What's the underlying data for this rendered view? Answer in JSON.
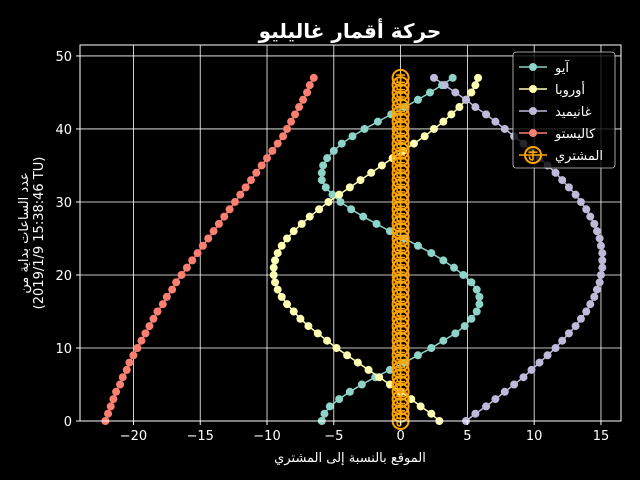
{
  "chart_data": {
    "type": "line",
    "title": "حركة أقمار غاليليو",
    "xlabel": "الموقع  بالنسبة إلى المشتري",
    "ylabel_line1": "عدد الساعات بداية من",
    "ylabel_line2": "(2019/1/9 15:38:46 TU)",
    "xlim": [
      -24,
      16.5
    ],
    "ylim": [
      0,
      51.5
    ],
    "xticks": [
      -20,
      -15,
      -10,
      -5,
      0,
      5,
      10,
      15
    ],
    "yticks": [
      0,
      10,
      20,
      30,
      40,
      50
    ],
    "grid": true,
    "legend_position": "top-right",
    "time_step_hours": 1,
    "series": [
      {
        "name": "آيو",
        "color": "#8dd3c7",
        "t": [
          0,
          1,
          2,
          3,
          4,
          5,
          6,
          7,
          8,
          9,
          10,
          11,
          12,
          13,
          14,
          15,
          16,
          17,
          18,
          19,
          20,
          21,
          22,
          23,
          24,
          25,
          26,
          27,
          28,
          29,
          30,
          31,
          32,
          33,
          34,
          35,
          36,
          37,
          38,
          39,
          40,
          41,
          42,
          43,
          44,
          45,
          46,
          47
        ],
        "x": [
          -5.9,
          -5.7,
          -5.3,
          -4.6,
          -3.8,
          -2.9,
          -1.9,
          -0.8,
          0.3,
          1.3,
          2.3,
          3.2,
          4.1,
          4.8,
          5.3,
          5.7,
          5.9,
          5.9,
          5.7,
          5.3,
          4.7,
          4.0,
          3.2,
          2.3,
          1.3,
          0.3,
          -0.8,
          -1.8,
          -2.8,
          -3.7,
          -4.5,
          -5.1,
          -5.6,
          -5.9,
          -5.9,
          -5.8,
          -5.5,
          -5.0,
          -4.4,
          -3.6,
          -2.7,
          -1.7,
          -0.7,
          0.3,
          1.3,
          2.2,
          3.1,
          3.9
        ]
      },
      {
        "name": "أوروبا",
        "color": "#ffffb3",
        "t": [
          0,
          1,
          2,
          3,
          4,
          5,
          6,
          7,
          8,
          9,
          10,
          11,
          12,
          13,
          14,
          15,
          16,
          17,
          18,
          19,
          20,
          21,
          22,
          23,
          24,
          25,
          26,
          27,
          28,
          29,
          30,
          31,
          32,
          33,
          34,
          35,
          36,
          37,
          38,
          39,
          40,
          41,
          42,
          43,
          44,
          45,
          46,
          47
        ],
        "x": [
          2.9,
          2.3,
          1.5,
          0.8,
          0.0,
          -0.8,
          -1.6,
          -2.4,
          -3.2,
          -4.0,
          -4.8,
          -5.5,
          -6.2,
          -6.9,
          -7.5,
          -8.0,
          -8.5,
          -8.9,
          -9.2,
          -9.4,
          -9.5,
          -9.5,
          -9.4,
          -9.2,
          -8.9,
          -8.5,
          -8.0,
          -7.4,
          -6.8,
          -6.1,
          -5.4,
          -4.6,
          -3.8,
          -3.0,
          -2.2,
          -1.4,
          -0.6,
          0.2,
          1.0,
          1.8,
          2.5,
          3.2,
          3.8,
          4.4,
          4.9,
          5.3,
          5.6,
          5.8
        ]
      },
      {
        "name": "غانيميد",
        "color": "#bebada",
        "t": [
          0,
          1,
          2,
          3,
          4,
          5,
          6,
          7,
          8,
          9,
          10,
          11,
          12,
          13,
          14,
          15,
          16,
          17,
          18,
          19,
          20,
          21,
          22,
          23,
          24,
          25,
          26,
          27,
          28,
          29,
          30,
          31,
          32,
          33,
          34,
          35,
          36,
          37,
          38,
          39,
          40,
          41,
          42,
          43,
          44,
          45,
          46,
          47
        ],
        "x": [
          4.9,
          5.6,
          6.4,
          7.1,
          7.8,
          8.5,
          9.2,
          9.8,
          10.4,
          11.0,
          11.6,
          12.1,
          12.6,
          13.1,
          13.5,
          13.9,
          14.2,
          14.5,
          14.7,
          14.9,
          15.0,
          15.1,
          15.1,
          15.1,
          15.0,
          14.9,
          14.7,
          14.5,
          14.2,
          13.9,
          13.5,
          13.1,
          12.6,
          12.1,
          11.6,
          11.0,
          10.4,
          9.8,
          9.2,
          8.5,
          7.8,
          7.1,
          6.4,
          5.6,
          4.9,
          4.1,
          3.3,
          2.5
        ]
      },
      {
        "name": "كاليستو",
        "color": "#fb8072",
        "t": [
          0,
          1,
          2,
          3,
          4,
          5,
          6,
          7,
          8,
          9,
          10,
          11,
          12,
          13,
          14,
          15,
          16,
          17,
          18,
          19,
          20,
          21,
          22,
          23,
          24,
          25,
          26,
          27,
          28,
          29,
          30,
          31,
          32,
          33,
          34,
          35,
          36,
          37,
          38,
          39,
          40,
          41,
          42,
          43,
          44,
          45,
          46,
          47
        ],
        "x": [
          -22.1,
          -21.9,
          -21.7,
          -21.5,
          -21.3,
          -21.0,
          -20.8,
          -20.5,
          -20.3,
          -20.0,
          -19.7,
          -19.4,
          -19.1,
          -18.8,
          -18.5,
          -18.2,
          -17.8,
          -17.5,
          -17.1,
          -16.8,
          -16.4,
          -16.0,
          -15.6,
          -15.2,
          -14.8,
          -14.4,
          -14.0,
          -13.6,
          -13.2,
          -12.8,
          -12.4,
          -12.0,
          -11.6,
          -11.2,
          -10.8,
          -10.4,
          -10.0,
          -9.6,
          -9.2,
          -8.8,
          -8.5,
          -8.2,
          -7.9,
          -7.6,
          -7.3,
          -7.0,
          -6.8,
          -6.5
        ]
      },
      {
        "name": "المشتري",
        "color": "#ffa500",
        "marker": "jupiter",
        "t": [
          0,
          1,
          2,
          3,
          4,
          5,
          6,
          7,
          8,
          9,
          10,
          11,
          12,
          13,
          14,
          15,
          16,
          17,
          18,
          19,
          20,
          21,
          22,
          23,
          24,
          25,
          26,
          27,
          28,
          29,
          30,
          31,
          32,
          33,
          34,
          35,
          36,
          37,
          38,
          39,
          40,
          41,
          42,
          43,
          44,
          45,
          46,
          47
        ],
        "x": [
          0,
          0,
          0,
          0,
          0,
          0,
          0,
          0,
          0,
          0,
          0,
          0,
          0,
          0,
          0,
          0,
          0,
          0,
          0,
          0,
          0,
          0,
          0,
          0,
          0,
          0,
          0,
          0,
          0,
          0,
          0,
          0,
          0,
          0,
          0,
          0,
          0,
          0,
          0,
          0,
          0,
          0,
          0,
          0,
          0,
          0,
          0,
          0
        ]
      }
    ]
  }
}
